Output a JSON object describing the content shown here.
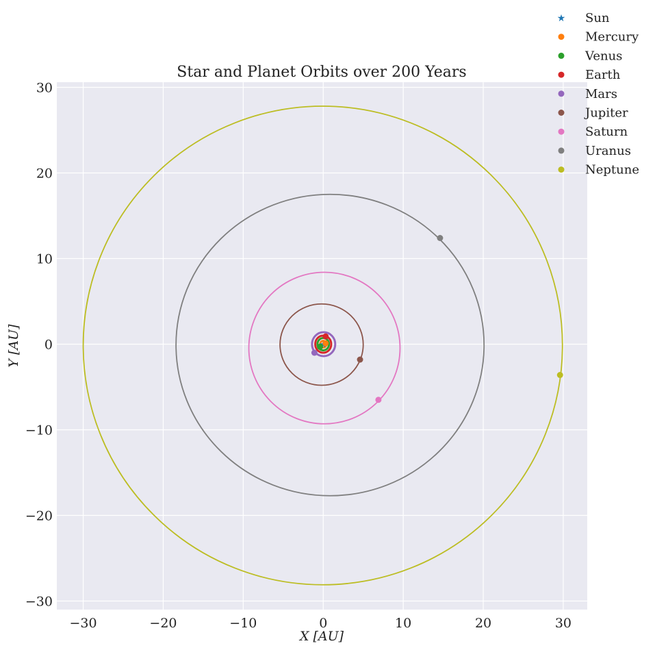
{
  "chart_data": {
    "type": "scatter",
    "title": "Star and Planet Orbits over 200 Years",
    "xlabel": "X [AU]",
    "ylabel": "Y [AU]",
    "xlim": [
      -33.3,
      33.0
    ],
    "ylim": [
      -31.0,
      30.6
    ],
    "xticks": [
      -30,
      -20,
      -10,
      0,
      10,
      20,
      30
    ],
    "yticks": [
      -30,
      -20,
      -10,
      0,
      10,
      20,
      30
    ],
    "xtick_labels": [
      "−30",
      "−20",
      "−10",
      "0",
      "10",
      "20",
      "30"
    ],
    "ytick_labels": [
      "−30",
      "−20",
      "−10",
      "0",
      "10",
      "20",
      "30"
    ],
    "grid": true,
    "legend_position": "top-right",
    "series": [
      {
        "name": "Sun",
        "marker": "star",
        "color": "#1f77b4",
        "orbit": null,
        "position": [
          0.0,
          0.0
        ]
      },
      {
        "name": "Mercury",
        "marker": "circle",
        "color": "#ff7f0e",
        "orbit": {
          "x_range": [
            -0.39,
            0.39
          ],
          "y_range": [
            -0.39,
            0.39
          ]
        },
        "position": [
          0.3,
          0.1
        ]
      },
      {
        "name": "Venus",
        "marker": "circle",
        "color": "#2ca02c",
        "orbit": {
          "x_range": [
            -0.72,
            0.72
          ],
          "y_range": [
            -0.72,
            0.72
          ]
        },
        "position": [
          -0.4,
          -0.3
        ]
      },
      {
        "name": "Earth",
        "marker": "circle",
        "color": "#d62728",
        "orbit": {
          "x_range": [
            -1.0,
            1.0
          ],
          "y_range": [
            -1.0,
            1.0
          ]
        },
        "position": [
          0.3,
          0.9
        ]
      },
      {
        "name": "Mars",
        "marker": "circle",
        "color": "#9467bd",
        "orbit": {
          "x_range": [
            -1.4,
            1.5
          ],
          "y_range": [
            -1.4,
            1.4
          ]
        },
        "position": [
          -1.1,
          -1.0
        ]
      },
      {
        "name": "Jupiter",
        "marker": "circle",
        "color": "#8c564b",
        "orbit": {
          "x_range": [
            -5.4,
            5.0
          ],
          "y_range": [
            -4.8,
            4.7
          ]
        },
        "position": [
          4.6,
          -1.8
        ]
      },
      {
        "name": "Saturn",
        "marker": "circle",
        "color": "#e377c2",
        "orbit": {
          "x_range": [
            -9.3,
            9.6
          ],
          "y_range": [
            -9.3,
            8.4
          ]
        },
        "position": [
          6.9,
          -6.5
        ]
      },
      {
        "name": "Uranus",
        "marker": "circle",
        "color": "#7f7f7f",
        "orbit": {
          "x_range": [
            -18.4,
            20.1
          ],
          "y_range": [
            -17.7,
            17.5
          ]
        },
        "position": [
          14.6,
          12.4
        ]
      },
      {
        "name": "Neptune",
        "marker": "circle",
        "color": "#bcbd22",
        "orbit": {
          "x_range": [
            -30.0,
            29.9
          ],
          "y_range": [
            -28.1,
            27.8
          ]
        },
        "position": [
          29.6,
          -3.6
        ]
      }
    ]
  }
}
